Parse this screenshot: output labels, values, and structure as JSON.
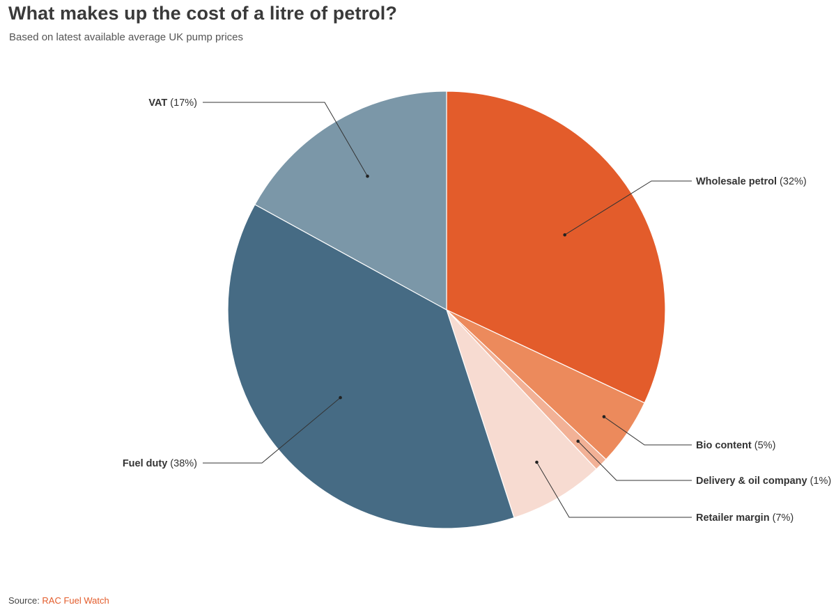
{
  "chart_data": {
    "type": "pie",
    "title": "What makes up the cost of a litre of petrol?",
    "subtitle": "Based on latest available average UK pump prices",
    "slices": [
      {
        "name": "Wholesale petrol",
        "label_value": "(32%)",
        "value": 32,
        "color": "#e35c2b"
      },
      {
        "name": "Bio content",
        "label_value": "(5%)",
        "value": 5,
        "color": "#ec8a5c"
      },
      {
        "name": "Delivery & oil company",
        "label_value": "(1%)",
        "value": 1,
        "color": "#f2b196"
      },
      {
        "name": "Retailer margin",
        "label_value": "(7%)",
        "value": 7,
        "color": "#f7dbd1"
      },
      {
        "name": "Fuel duty",
        "label_value": "(38%)",
        "value": 38,
        "color": "#466b84"
      },
      {
        "name": "VAT",
        "label_value": "(17%)",
        "value": 17,
        "color": "#7b97a8"
      }
    ],
    "start": "12 o'clock",
    "direction": "clockwise",
    "legend": "none (direct labels)"
  },
  "source": {
    "prefix": "Source: ",
    "name": "RAC Fuel Watch"
  }
}
